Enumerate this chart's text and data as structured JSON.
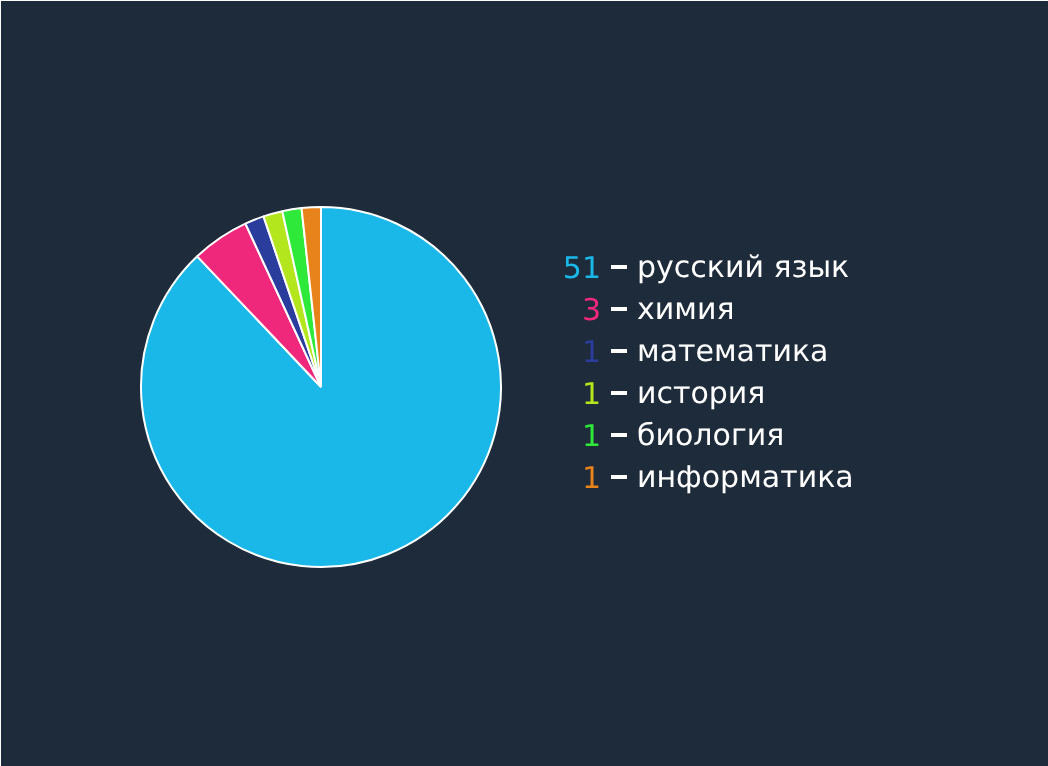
{
  "chart_data": {
    "type": "pie",
    "categories": [
      "русский язык",
      "химия",
      "математика",
      "история",
      "биология",
      "информатика"
    ],
    "values": [
      51,
      3,
      1,
      1,
      1,
      1
    ],
    "colors": [
      "#1ab8e8",
      "#f0287c",
      "#2a3c9c",
      "#b4e61e",
      "#2ee83a",
      "#e8821a"
    ],
    "data_labels": true,
    "legend": "right"
  }
}
